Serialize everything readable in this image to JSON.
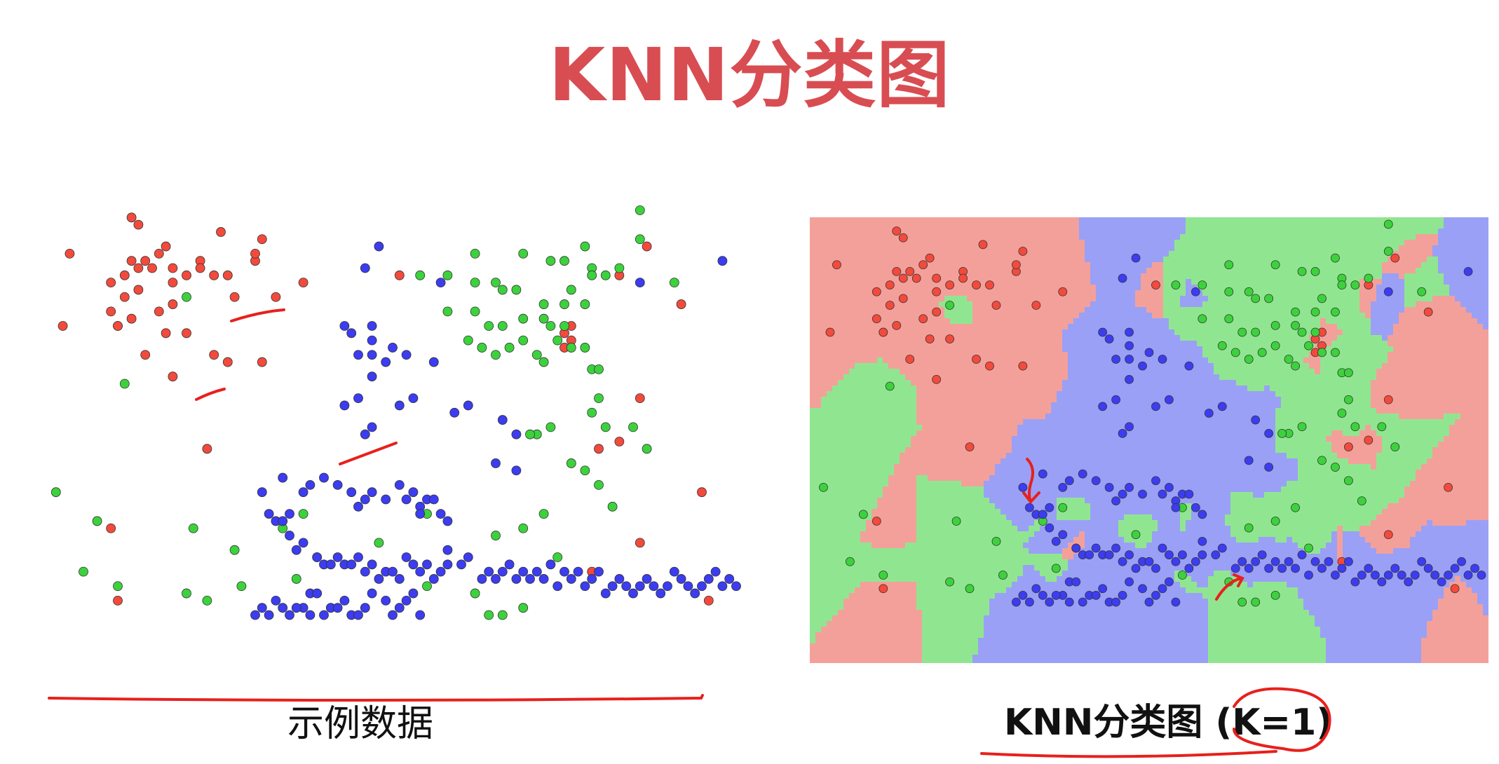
{
  "title": "KNN分类图",
  "left_caption": "示例数据",
  "right_caption": "KNN分类图 (K=1)",
  "colors": {
    "title": "#d84d52",
    "red_point": "#f24a3c",
    "green_point": "#3cd23c",
    "blue_point": "#3c3cf0",
    "red_region": "#f4a09a",
    "green_region": "#90e690",
    "blue_region": "#9aa0f6",
    "annotation": "#e8201c"
  },
  "chart_data": {
    "type": "scatter",
    "xlim": [
      0,
      100
    ],
    "ylim": [
      0,
      64
    ],
    "series": [
      {
        "values": [
          [
            12,
            63
          ],
          [
            13,
            62
          ],
          [
            3,
            58
          ],
          [
            25,
            61
          ],
          [
            17,
            59
          ],
          [
            16,
            58
          ],
          [
            22,
            57
          ],
          [
            12,
            57
          ],
          [
            13,
            56
          ],
          [
            14,
            57
          ],
          [
            15,
            56
          ],
          [
            18,
            56
          ],
          [
            20,
            55
          ],
          [
            22,
            56
          ],
          [
            26,
            55
          ],
          [
            30,
            57
          ],
          [
            30,
            58
          ],
          [
            31,
            60
          ],
          [
            11,
            55
          ],
          [
            9,
            54
          ],
          [
            18,
            54
          ],
          [
            24,
            55
          ],
          [
            13,
            53
          ],
          [
            11,
            52
          ],
          [
            9,
            50
          ],
          [
            16,
            50
          ],
          [
            18,
            51
          ],
          [
            12,
            49
          ],
          [
            10,
            48
          ],
          [
            27,
            52
          ],
          [
            33,
            52
          ],
          [
            2,
            48
          ],
          [
            10,
            48
          ],
          [
            17,
            47
          ],
          [
            20,
            47
          ],
          [
            14,
            44
          ],
          [
            24,
            44
          ],
          [
            18,
            41
          ],
          [
            26,
            43
          ],
          [
            31,
            43
          ],
          [
            23,
            31
          ],
          [
            9,
            20
          ],
          [
            10,
            10
          ],
          [
            39,
            16
          ],
          [
            51,
            55
          ],
          [
            87,
            59
          ],
          [
            83,
            55
          ],
          [
            92,
            51
          ],
          [
            76,
            48
          ],
          [
            75,
            47
          ],
          [
            76,
            46
          ],
          [
            75,
            45
          ],
          [
            86,
            38
          ],
          [
            83,
            32
          ],
          [
            80,
            31
          ],
          [
            86,
            18
          ],
          [
            79,
            14
          ],
          [
            95,
            25
          ],
          [
            96,
            10
          ],
          [
            37,
            54
          ]
        ]
      },
      {
        "values": [
          [
            86,
            64
          ],
          [
            86,
            60
          ],
          [
            78,
            59
          ],
          [
            62,
            58
          ],
          [
            69,
            58
          ],
          [
            73,
            57
          ],
          [
            75,
            57
          ],
          [
            79,
            56
          ],
          [
            79,
            55
          ],
          [
            54,
            55
          ],
          [
            58,
            55
          ],
          [
            62,
            54
          ],
          [
            65,
            54
          ],
          [
            66,
            53
          ],
          [
            68,
            53
          ],
          [
            76,
            53
          ],
          [
            81,
            55
          ],
          [
            83,
            56
          ],
          [
            72,
            51
          ],
          [
            75,
            51
          ],
          [
            78,
            51
          ],
          [
            58,
            50
          ],
          [
            62,
            50
          ],
          [
            64,
            48
          ],
          [
            66,
            48
          ],
          [
            69,
            49
          ],
          [
            72,
            49
          ],
          [
            73,
            48
          ],
          [
            75,
            48
          ],
          [
            74,
            46
          ],
          [
            61,
            46
          ],
          [
            69,
            46
          ],
          [
            67,
            45
          ],
          [
            76,
            45
          ],
          [
            78,
            45
          ],
          [
            63,
            45
          ],
          [
            65,
            44
          ],
          [
            71,
            44
          ],
          [
            72,
            43
          ],
          [
            79,
            42
          ],
          [
            80,
            42
          ],
          [
            80,
            38
          ],
          [
            79,
            36
          ],
          [
            81,
            34
          ],
          [
            85,
            34
          ],
          [
            73,
            34
          ],
          [
            71,
            33
          ],
          [
            70,
            33
          ],
          [
            87,
            31
          ],
          [
            76,
            29
          ],
          [
            78,
            28
          ],
          [
            80,
            26
          ],
          [
            82,
            23
          ],
          [
            91,
            54
          ],
          [
            20,
            52
          ],
          [
            11,
            40
          ],
          [
            1,
            25
          ],
          [
            7,
            21
          ],
          [
            34,
            20
          ],
          [
            21,
            20
          ],
          [
            27,
            17
          ],
          [
            5,
            14
          ],
          [
            10,
            12
          ],
          [
            20,
            11
          ],
          [
            23,
            10
          ],
          [
            28,
            12
          ],
          [
            36,
            13
          ],
          [
            55,
            12
          ],
          [
            62,
            11
          ],
          [
            64,
            8
          ],
          [
            66,
            8
          ],
          [
            69,
            9
          ],
          [
            69,
            20
          ],
          [
            72,
            22
          ],
          [
            65,
            19
          ],
          [
            74,
            16
          ],
          [
            37,
            22
          ],
          [
            48,
            18
          ],
          [
            55,
            22
          ]
        ]
      },
      {
        "values": [
          [
            98,
            57
          ],
          [
            86,
            54
          ],
          [
            46,
            56
          ],
          [
            48,
            59
          ],
          [
            57,
            54
          ],
          [
            43,
            48
          ],
          [
            44,
            47
          ],
          [
            47,
            48
          ],
          [
            47,
            46
          ],
          [
            45,
            44
          ],
          [
            47,
            44
          ],
          [
            50,
            45
          ],
          [
            52,
            44
          ],
          [
            49,
            43
          ],
          [
            56,
            43
          ],
          [
            47,
            41
          ],
          [
            45,
            38
          ],
          [
            43,
            37
          ],
          [
            51,
            37
          ],
          [
            53,
            38
          ],
          [
            47,
            34
          ],
          [
            46,
            33
          ],
          [
            59,
            36
          ],
          [
            61,
            37
          ],
          [
            66,
            35
          ],
          [
            68,
            33
          ],
          [
            65,
            29
          ],
          [
            68,
            28
          ],
          [
            32,
            22
          ],
          [
            35,
            22
          ],
          [
            31,
            25
          ],
          [
            34,
            27
          ],
          [
            37,
            25
          ],
          [
            38,
            26
          ],
          [
            40,
            27
          ],
          [
            42,
            26
          ],
          [
            44,
            25
          ],
          [
            45,
            23
          ],
          [
            46,
            24
          ],
          [
            47,
            25
          ],
          [
            49,
            24
          ],
          [
            51,
            26
          ],
          [
            52,
            24
          ],
          [
            53,
            25
          ],
          [
            54,
            23
          ],
          [
            55,
            24
          ],
          [
            56,
            24
          ],
          [
            54,
            22
          ],
          [
            57,
            22
          ],
          [
            58,
            21
          ],
          [
            33,
            21
          ],
          [
            34,
            21
          ],
          [
            35,
            19
          ],
          [
            36,
            17
          ],
          [
            37,
            18
          ],
          [
            39,
            16
          ],
          [
            40,
            15
          ],
          [
            41,
            15
          ],
          [
            42,
            16
          ],
          [
            43,
            15
          ],
          [
            44,
            15
          ],
          [
            45,
            16
          ],
          [
            46,
            14
          ],
          [
            47,
            15
          ],
          [
            48,
            13
          ],
          [
            49,
            14
          ],
          [
            50,
            14
          ],
          [
            51,
            13
          ],
          [
            52,
            16
          ],
          [
            53,
            15
          ],
          [
            54,
            14
          ],
          [
            55,
            15
          ],
          [
            56,
            13
          ],
          [
            57,
            14
          ],
          [
            58,
            15
          ],
          [
            37,
            9
          ],
          [
            38,
            8
          ],
          [
            40,
            8
          ],
          [
            41,
            9
          ],
          [
            43,
            10
          ],
          [
            44,
            8
          ],
          [
            45,
            8
          ],
          [
            46,
            9
          ],
          [
            47,
            11
          ],
          [
            49,
            10
          ],
          [
            50,
            8
          ],
          [
            51,
            9
          ],
          [
            52,
            10
          ],
          [
            53,
            11
          ],
          [
            54,
            8
          ],
          [
            58,
            17
          ],
          [
            60,
            15
          ],
          [
            61,
            16
          ],
          [
            63,
            13
          ],
          [
            64,
            14
          ],
          [
            65,
            13
          ],
          [
            66,
            14
          ],
          [
            67,
            15
          ],
          [
            68,
            13
          ],
          [
            69,
            14
          ],
          [
            70,
            13
          ],
          [
            71,
            14
          ],
          [
            72,
            13
          ],
          [
            73,
            15
          ],
          [
            74,
            12
          ],
          [
            75,
            14
          ],
          [
            76,
            13
          ],
          [
            77,
            14
          ],
          [
            78,
            12
          ],
          [
            79,
            13
          ],
          [
            80,
            14
          ],
          [
            81,
            11
          ],
          [
            82,
            12
          ],
          [
            83,
            13
          ],
          [
            84,
            12
          ],
          [
            85,
            11
          ],
          [
            86,
            12
          ],
          [
            87,
            13
          ],
          [
            88,
            12
          ],
          [
            89,
            11
          ],
          [
            90,
            12
          ],
          [
            91,
            14
          ],
          [
            92,
            13
          ],
          [
            93,
            12
          ],
          [
            94,
            11
          ],
          [
            95,
            12
          ],
          [
            96,
            13
          ],
          [
            97,
            14
          ],
          [
            98,
            12
          ],
          [
            99,
            13
          ],
          [
            100,
            12
          ],
          [
            30,
            8
          ],
          [
            31,
            9
          ],
          [
            32,
            8
          ],
          [
            33,
            10
          ],
          [
            34,
            9
          ],
          [
            35,
            8
          ],
          [
            36,
            9
          ],
          [
            38,
            11
          ],
          [
            39,
            11
          ],
          [
            42,
            9
          ]
        ]
      }
    ]
  }
}
